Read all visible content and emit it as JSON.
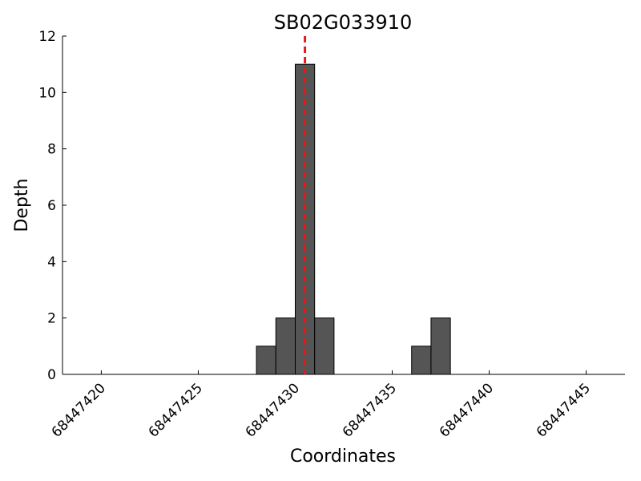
{
  "chart_data": {
    "type": "histogram",
    "title": "SB02G033910",
    "x_label": "Coordinates",
    "y_label": "Depth",
    "bins": [
      68447428,
      68447429,
      68447430,
      68447431,
      68447432,
      68447433,
      68447434,
      68447435,
      68447436,
      68447437,
      68447438
    ],
    "counts": [
      1,
      2,
      11,
      2,
      0,
      0,
      0,
      0,
      1,
      2
    ],
    "color": "#555555",
    "edge_color": "#000000",
    "marker_x": 68447430.5,
    "marker_color": "#e31a1c",
    "xlim": [
      68447418,
      68447447
    ],
    "xticks": [
      68447420,
      68447425,
      68447430,
      68447435,
      68447440,
      68447445
    ],
    "ylim": [
      0,
      12
    ],
    "yticks": [
      0,
      2,
      4,
      6,
      8,
      10,
      12
    ],
    "grid": false
  }
}
